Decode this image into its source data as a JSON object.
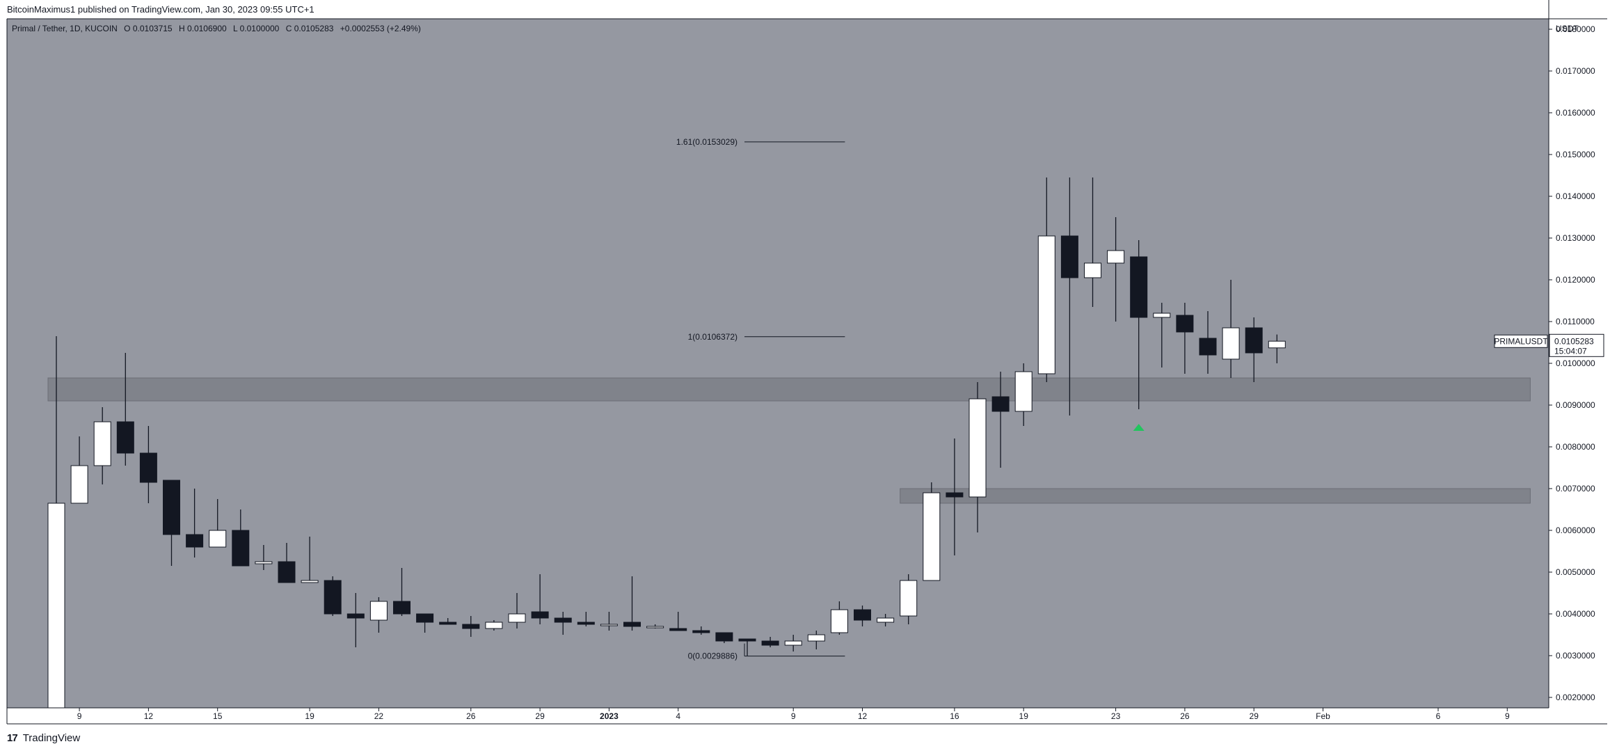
{
  "header": {
    "text": "BitcoinMaximus1 published on TradingView.com, Jan 30, 2023 09:55 UTC+1"
  },
  "legend": {
    "symbol": "Primal / Tether, 1D, KUCOIN",
    "o_label": "O",
    "o_value": "0.0103715",
    "h_label": "H",
    "h_value": "0.0106900",
    "l_label": "L",
    "l_value": "0.0100000",
    "c_label": "C",
    "c_value": "0.0105283",
    "change": "+0.0002553 (+2.49%)"
  },
  "footer": {
    "brand": "TradingView"
  },
  "chart_data": {
    "type": "candlestick",
    "currency": "USDT",
    "ylim": [
      0.00175,
      0.01825
    ],
    "y_ticks": [
      "0.0180000",
      "0.0170000",
      "0.0160000",
      "0.0150000",
      "0.0140000",
      "0.0130000",
      "0.0120000",
      "0.0110000",
      "0.0100000",
      "0.0090000",
      "0.0080000",
      "0.0070000",
      "0.0060000",
      "0.0050000",
      "0.0040000",
      "0.0030000",
      "0.0020000"
    ],
    "y_tick_values": [
      0.018,
      0.017,
      0.016,
      0.015,
      0.014,
      0.013,
      0.012,
      0.011,
      0.01,
      0.009,
      0.008,
      0.007,
      0.006,
      0.005,
      0.004,
      0.003,
      0.002
    ],
    "x_range": [
      "2022-12-08",
      "2023-02-10"
    ],
    "x_ticks": [
      {
        "date": "2022-12-09",
        "label": "9",
        "bold": false
      },
      {
        "date": "2022-12-12",
        "label": "12",
        "bold": false
      },
      {
        "date": "2022-12-15",
        "label": "15",
        "bold": false
      },
      {
        "date": "2022-12-19",
        "label": "19",
        "bold": false
      },
      {
        "date": "2022-12-22",
        "label": "22",
        "bold": false
      },
      {
        "date": "2022-12-26",
        "label": "26",
        "bold": false
      },
      {
        "date": "2022-12-29",
        "label": "29",
        "bold": false
      },
      {
        "date": "2023-01-01",
        "label": "2023",
        "bold": true
      },
      {
        "date": "2023-01-04",
        "label": "4",
        "bold": false
      },
      {
        "date": "2023-01-09",
        "label": "9",
        "bold": false
      },
      {
        "date": "2023-01-12",
        "label": "12",
        "bold": false
      },
      {
        "date": "2023-01-16",
        "label": "16",
        "bold": false
      },
      {
        "date": "2023-01-19",
        "label": "19",
        "bold": false
      },
      {
        "date": "2023-01-23",
        "label": "23",
        "bold": false
      },
      {
        "date": "2023-01-26",
        "label": "26",
        "bold": false
      },
      {
        "date": "2023-01-29",
        "label": "29",
        "bold": false
      },
      {
        "date": "2023-02-01",
        "label": "Feb",
        "bold": false
      },
      {
        "date": "2023-02-06",
        "label": "6",
        "bold": false
      },
      {
        "date": "2023-02-09",
        "label": "9",
        "bold": false
      }
    ],
    "candles": [
      {
        "date": "2022-12-08",
        "o": 0.00175,
        "h": 0.01065,
        "l": 0.00175,
        "c": 0.00665
      },
      {
        "date": "2022-12-09",
        "o": 0.00665,
        "h": 0.00825,
        "l": 0.00665,
        "c": 0.00755
      },
      {
        "date": "2022-12-10",
        "o": 0.00755,
        "h": 0.00895,
        "l": 0.0071,
        "c": 0.0086
      },
      {
        "date": "2022-12-11",
        "o": 0.0086,
        "h": 0.01025,
        "l": 0.00755,
        "c": 0.00785
      },
      {
        "date": "2022-12-12",
        "o": 0.00785,
        "h": 0.0085,
        "l": 0.00665,
        "c": 0.00715
      },
      {
        "date": "2022-12-13",
        "o": 0.0072,
        "h": 0.0072,
        "l": 0.00515,
        "c": 0.0059
      },
      {
        "date": "2022-12-14",
        "o": 0.0059,
        "h": 0.007,
        "l": 0.00535,
        "c": 0.0056
      },
      {
        "date": "2022-12-15",
        "o": 0.0056,
        "h": 0.00675,
        "l": 0.0056,
        "c": 0.006
      },
      {
        "date": "2022-12-16",
        "o": 0.006,
        "h": 0.0065,
        "l": 0.00515,
        "c": 0.00515
      },
      {
        "date": "2022-12-17",
        "o": 0.0052,
        "h": 0.00565,
        "l": 0.00505,
        "c": 0.00525
      },
      {
        "date": "2022-12-18",
        "o": 0.00525,
        "h": 0.0057,
        "l": 0.00475,
        "c": 0.00475
      },
      {
        "date": "2022-12-19",
        "o": 0.00475,
        "h": 0.00585,
        "l": 0.00475,
        "c": 0.0048
      },
      {
        "date": "2022-12-20",
        "o": 0.0048,
        "h": 0.0049,
        "l": 0.00395,
        "c": 0.004
      },
      {
        "date": "2022-12-21",
        "o": 0.004,
        "h": 0.0045,
        "l": 0.0032,
        "c": 0.0039
      },
      {
        "date": "2022-12-22",
        "o": 0.00385,
        "h": 0.0044,
        "l": 0.00355,
        "c": 0.0043
      },
      {
        "date": "2022-12-23",
        "o": 0.0043,
        "h": 0.0051,
        "l": 0.00395,
        "c": 0.004
      },
      {
        "date": "2022-12-24",
        "o": 0.004,
        "h": 0.004,
        "l": 0.00355,
        "c": 0.0038
      },
      {
        "date": "2022-12-25",
        "o": 0.0038,
        "h": 0.0039,
        "l": 0.00375,
        "c": 0.00375
      },
      {
        "date": "2022-12-26",
        "o": 0.00375,
        "h": 0.00395,
        "l": 0.00345,
        "c": 0.00365
      },
      {
        "date": "2022-12-27",
        "o": 0.00365,
        "h": 0.00385,
        "l": 0.0036,
        "c": 0.0038
      },
      {
        "date": "2022-12-28",
        "o": 0.0038,
        "h": 0.0045,
        "l": 0.00365,
        "c": 0.004
      },
      {
        "date": "2022-12-29",
        "o": 0.00405,
        "h": 0.00495,
        "l": 0.00375,
        "c": 0.0039
      },
      {
        "date": "2022-12-30",
        "o": 0.0039,
        "h": 0.00405,
        "l": 0.0035,
        "c": 0.0038
      },
      {
        "date": "2022-12-31",
        "o": 0.0038,
        "h": 0.00405,
        "l": 0.0037,
        "c": 0.00375
      },
      {
        "date": "2023-01-01",
        "o": 0.00375,
        "h": 0.00405,
        "l": 0.0036,
        "c": 0.00375
      },
      {
        "date": "2023-01-02",
        "o": 0.0038,
        "h": 0.0049,
        "l": 0.0036,
        "c": 0.0037
      },
      {
        "date": "2023-01-03",
        "o": 0.0037,
        "h": 0.00375,
        "l": 0.00365,
        "c": 0.0037
      },
      {
        "date": "2023-01-04",
        "o": 0.00365,
        "h": 0.00405,
        "l": 0.0036,
        "c": 0.0036
      },
      {
        "date": "2023-01-05",
        "o": 0.0036,
        "h": 0.0037,
        "l": 0.0035,
        "c": 0.00355
      },
      {
        "date": "2023-01-06",
        "o": 0.00355,
        "h": 0.00355,
        "l": 0.0033,
        "c": 0.00335
      },
      {
        "date": "2023-01-07",
        "o": 0.0034,
        "h": 0.0034,
        "l": 0.003,
        "c": 0.00335
      },
      {
        "date": "2023-01-08",
        "o": 0.00335,
        "h": 0.00345,
        "l": 0.0032,
        "c": 0.00325
      },
      {
        "date": "2023-01-09",
        "o": 0.00325,
        "h": 0.0035,
        "l": 0.0031,
        "c": 0.00335
      },
      {
        "date": "2023-01-10",
        "o": 0.00335,
        "h": 0.0036,
        "l": 0.00315,
        "c": 0.0035
      },
      {
        "date": "2023-01-11",
        "o": 0.00355,
        "h": 0.0043,
        "l": 0.0035,
        "c": 0.0041
      },
      {
        "date": "2023-01-12",
        "o": 0.0041,
        "h": 0.0042,
        "l": 0.0037,
        "c": 0.00385
      },
      {
        "date": "2023-01-13",
        "o": 0.0038,
        "h": 0.004,
        "l": 0.0037,
        "c": 0.0039
      },
      {
        "date": "2023-01-14",
        "o": 0.00395,
        "h": 0.00495,
        "l": 0.00375,
        "c": 0.0048
      },
      {
        "date": "2023-01-15",
        "o": 0.0048,
        "h": 0.00715,
        "l": 0.0048,
        "c": 0.0069
      },
      {
        "date": "2023-01-16",
        "o": 0.0069,
        "h": 0.0082,
        "l": 0.0054,
        "c": 0.0068
      },
      {
        "date": "2023-01-17",
        "o": 0.0068,
        "h": 0.00955,
        "l": 0.00595,
        "c": 0.00915
      },
      {
        "date": "2023-01-18",
        "o": 0.0092,
        "h": 0.0098,
        "l": 0.0075,
        "c": 0.00885
      },
      {
        "date": "2023-01-19",
        "o": 0.00885,
        "h": 0.01,
        "l": 0.0085,
        "c": 0.0098
      },
      {
        "date": "2023-01-20",
        "o": 0.00975,
        "h": 0.01445,
        "l": 0.00955,
        "c": 0.01305
      },
      {
        "date": "2023-01-21",
        "o": 0.01305,
        "h": 0.01445,
        "l": 0.00875,
        "c": 0.01205
      },
      {
        "date": "2023-01-22",
        "o": 0.01205,
        "h": 0.01445,
        "l": 0.01135,
        "c": 0.0124
      },
      {
        "date": "2023-01-23",
        "o": 0.0124,
        "h": 0.0135,
        "l": 0.011,
        "c": 0.0127
      },
      {
        "date": "2023-01-24",
        "o": 0.01255,
        "h": 0.01295,
        "l": 0.0089,
        "c": 0.0111
      },
      {
        "date": "2023-01-25",
        "o": 0.0111,
        "h": 0.01145,
        "l": 0.0099,
        "c": 0.0112
      },
      {
        "date": "2023-01-26",
        "o": 0.01115,
        "h": 0.01145,
        "l": 0.00975,
        "c": 0.01075
      },
      {
        "date": "2023-01-27",
        "o": 0.0106,
        "h": 0.01125,
        "l": 0.00975,
        "c": 0.0102
      },
      {
        "date": "2023-01-28",
        "o": 0.0101,
        "h": 0.012,
        "l": 0.00965,
        "c": 0.01085
      },
      {
        "date": "2023-01-29",
        "o": 0.01085,
        "h": 0.0111,
        "l": 0.00955,
        "c": 0.01025
      },
      {
        "date": "2023-01-30",
        "o": 0.01037,
        "h": 0.01069,
        "l": 0.01,
        "c": 0.01053
      }
    ],
    "fib_levels": [
      {
        "label": "1.61(0.0153029)",
        "value": 0.0153029
      },
      {
        "label": "1(0.0106372)",
        "value": 0.0106372
      },
      {
        "label": "0(0.0029886)",
        "value": 0.0029886
      }
    ],
    "fib_range": [
      "2023-01-07",
      "2023-01-11"
    ],
    "zones": [
      {
        "from": "2022-12-08",
        "to": "2023-02-10",
        "low": 0.0091,
        "high": 0.00965
      },
      {
        "from": "2023-01-14",
        "to": "2023-02-10",
        "low": 0.00665,
        "high": 0.007
      }
    ],
    "marker": {
      "date": "2023-01-24",
      "value": 0.00845,
      "color": "#22c55e"
    },
    "price_label": {
      "symbol": "PRIMALUSDT",
      "price": "0.0105283",
      "countdown": "15:04:07",
      "value": 0.0105283
    },
    "colors": {
      "background": "#9598a1",
      "up": "#ffffff",
      "down": "#131722",
      "zone": "#7c7f87"
    }
  }
}
